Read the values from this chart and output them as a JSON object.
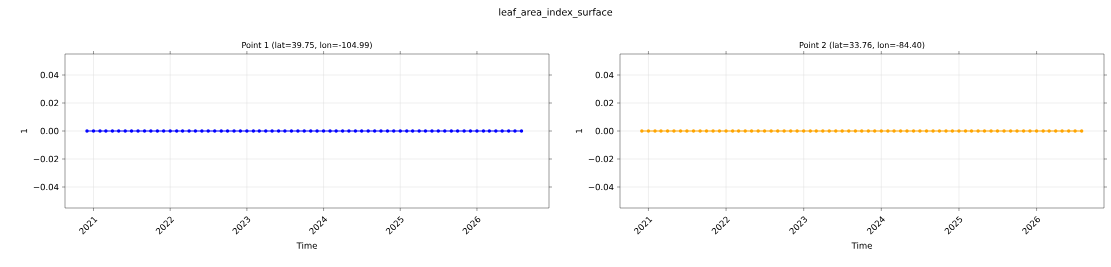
{
  "chart_data": [
    {
      "type": "line",
      "title": "leaf_area_index_surface",
      "subtitle": "Point 1 (lat=39.75, lon=-104.99)",
      "xlabel": "Time",
      "ylabel": "1",
      "x": [
        "2020-12",
        "2021-01",
        "2021-02",
        "2021-03",
        "2021-04",
        "2021-05",
        "2021-06",
        "2021-07",
        "2021-08",
        "2021-09",
        "2021-10",
        "2021-11",
        "2021-12",
        "2022-01",
        "2022-02",
        "2022-03",
        "2022-04",
        "2022-05",
        "2022-06",
        "2022-07",
        "2022-08",
        "2022-09",
        "2022-10",
        "2022-11",
        "2022-12",
        "2023-01",
        "2023-02",
        "2023-03",
        "2023-04",
        "2023-05",
        "2023-06",
        "2023-07",
        "2023-08",
        "2023-09",
        "2023-10",
        "2023-11",
        "2023-12",
        "2024-01",
        "2024-02",
        "2024-03",
        "2024-04",
        "2024-05",
        "2024-06",
        "2024-07",
        "2024-08",
        "2024-09",
        "2024-10",
        "2024-11",
        "2024-12",
        "2025-01",
        "2025-02",
        "2025-03",
        "2025-04",
        "2025-05",
        "2025-06",
        "2025-07",
        "2025-08",
        "2025-09",
        "2025-10",
        "2025-11",
        "2025-12",
        "2026-01",
        "2026-02",
        "2026-03",
        "2026-04",
        "2026-05",
        "2026-06",
        "2026-07",
        "2026-08"
      ],
      "series": [
        {
          "color": "#0000ff",
          "values": [
            0,
            0,
            0,
            0,
            0,
            0,
            0,
            0,
            0,
            0,
            0,
            0,
            0,
            0,
            0,
            0,
            0,
            0,
            0,
            0,
            0,
            0,
            0,
            0,
            0,
            0,
            0,
            0,
            0,
            0,
            0,
            0,
            0,
            0,
            0,
            0,
            0,
            0,
            0,
            0,
            0,
            0,
            0,
            0,
            0,
            0,
            0,
            0,
            0,
            0,
            0,
            0,
            0,
            0,
            0,
            0,
            0,
            0,
            0,
            0,
            0,
            0,
            0,
            0,
            0,
            0,
            0,
            0,
            0
          ]
        }
      ],
      "xlim": [
        "2020-08-18",
        "2026-12-10"
      ],
      "xticks": [
        "2021",
        "2022",
        "2023",
        "2024",
        "2025",
        "2026"
      ],
      "ylim": [
        -0.055,
        0.055
      ],
      "yticks": [
        {
          "value": -0.04,
          "label": "−0.04"
        },
        {
          "value": -0.02,
          "label": "−0.02"
        },
        {
          "value": 0,
          "label": "0.00"
        },
        {
          "value": 0.02,
          "label": "0.02"
        },
        {
          "value": 0.04,
          "label": "0.04"
        }
      ],
      "grid": true,
      "marker": "circle",
      "line_style": "solid"
    },
    {
      "type": "line",
      "subtitle": "Point 2 (lat=33.76, lon=-84.40)",
      "xlabel": "Time",
      "ylabel": "1",
      "x": [
        "2020-12",
        "2021-01",
        "2021-02",
        "2021-03",
        "2021-04",
        "2021-05",
        "2021-06",
        "2021-07",
        "2021-08",
        "2021-09",
        "2021-10",
        "2021-11",
        "2021-12",
        "2022-01",
        "2022-02",
        "2022-03",
        "2022-04",
        "2022-05",
        "2022-06",
        "2022-07",
        "2022-08",
        "2022-09",
        "2022-10",
        "2022-11",
        "2022-12",
        "2023-01",
        "2023-02",
        "2023-03",
        "2023-04",
        "2023-05",
        "2023-06",
        "2023-07",
        "2023-08",
        "2023-09",
        "2023-10",
        "2023-11",
        "2023-12",
        "2024-01",
        "2024-02",
        "2024-03",
        "2024-04",
        "2024-05",
        "2024-06",
        "2024-07",
        "2024-08",
        "2024-09",
        "2024-10",
        "2024-11",
        "2024-12",
        "2025-01",
        "2025-02",
        "2025-03",
        "2025-04",
        "2025-05",
        "2025-06",
        "2025-07",
        "2025-08",
        "2025-09",
        "2025-10",
        "2025-11",
        "2025-12",
        "2026-01",
        "2026-02",
        "2026-03",
        "2026-04",
        "2026-05",
        "2026-06",
        "2026-07",
        "2026-08"
      ],
      "series": [
        {
          "color": "#ffa500",
          "values": [
            0,
            0,
            0,
            0,
            0,
            0,
            0,
            0,
            0,
            0,
            0,
            0,
            0,
            0,
            0,
            0,
            0,
            0,
            0,
            0,
            0,
            0,
            0,
            0,
            0,
            0,
            0,
            0,
            0,
            0,
            0,
            0,
            0,
            0,
            0,
            0,
            0,
            0,
            0,
            0,
            0,
            0,
            0,
            0,
            0,
            0,
            0,
            0,
            0,
            0,
            0,
            0,
            0,
            0,
            0,
            0,
            0,
            0,
            0,
            0,
            0,
            0,
            0,
            0,
            0,
            0,
            0,
            0,
            0
          ]
        }
      ],
      "xlim": [
        "2020-08-20",
        "2026-11-14"
      ],
      "xticks": [
        "2021",
        "2022",
        "2023",
        "2024",
        "2025",
        "2026"
      ],
      "ylim": [
        -0.055,
        0.055
      ],
      "yticks": [
        {
          "value": -0.04,
          "label": "−0.04"
        },
        {
          "value": -0.02,
          "label": "−0.02"
        },
        {
          "value": 0,
          "label": "0.00"
        },
        {
          "value": 0.02,
          "label": "0.02"
        },
        {
          "value": 0.04,
          "label": "0.04"
        }
      ],
      "grid": true,
      "marker": "circle",
      "line_style": "solid"
    }
  ]
}
